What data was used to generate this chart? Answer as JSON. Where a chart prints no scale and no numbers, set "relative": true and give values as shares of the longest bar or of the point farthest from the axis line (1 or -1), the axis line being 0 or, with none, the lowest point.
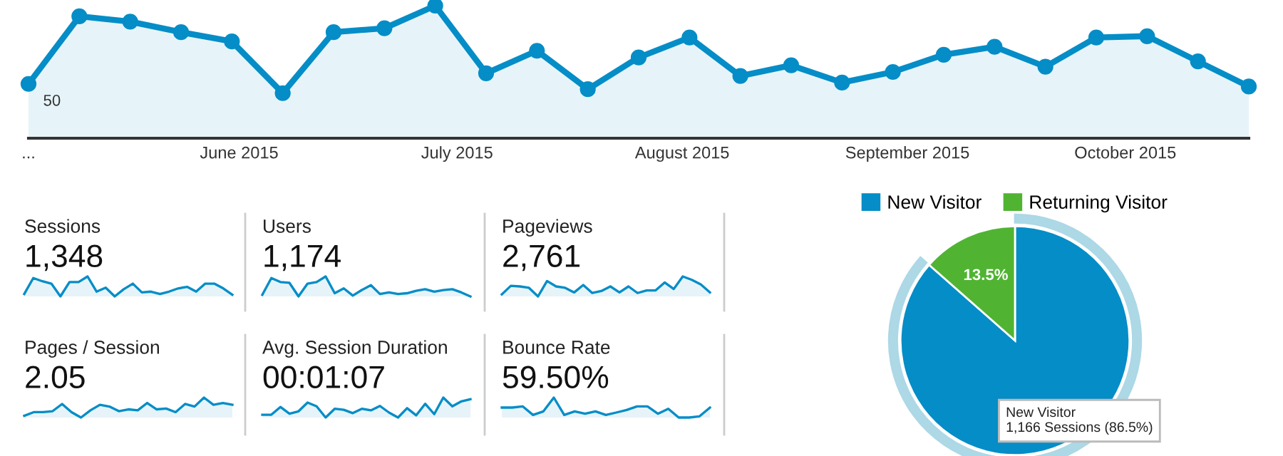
{
  "chart_data": [
    {
      "type": "area",
      "relative": true,
      "color": "#058dc7",
      "marker": "circle",
      "grid": false,
      "x": [
        "2015-05-03",
        "2015-05-10",
        "2015-05-17",
        "2015-05-24",
        "2015-05-31",
        "2015-06-07",
        "2015-06-14",
        "2015-06-21",
        "2015-06-28",
        "2015-07-05",
        "2015-07-12",
        "2015-07-19",
        "2015-07-26",
        "2015-08-02",
        "2015-08-09",
        "2015-08-16",
        "2015-08-23",
        "2015-08-30",
        "2015-09-06",
        "2015-09-13",
        "2015-09-20",
        "2015-09-27",
        "2015-10-04",
        "2015-10-11",
        "2015-10-18"
      ],
      "values": [
        0.41,
        0.92,
        0.88,
        0.8,
        0.73,
        0.34,
        0.8,
        0.83,
        1,
        0.49,
        0.66,
        0.37,
        0.61,
        0.76,
        0.47,
        0.55,
        0.42,
        0.5,
        0.63,
        0.69,
        0.54,
        0.76,
        0.77,
        0.58,
        0.39
      ],
      "xlim": [
        "2015-05-03",
        "2015-10-18"
      ],
      "xticks": [
        {
          "value": "2015-05-03",
          "label": "..."
        },
        {
          "value": "2015-06-01",
          "label": "June 2015"
        },
        {
          "value": "2015-07-01",
          "label": "July 2015"
        },
        {
          "value": "2015-08-01",
          "label": "August 2015"
        },
        {
          "value": "2015-09-01",
          "label": "September 2015"
        },
        {
          "value": "2015-10-01",
          "label": "October 2015"
        }
      ],
      "annotations": [
        "50"
      ]
    },
    {
      "type": "area",
      "relative": true,
      "color": "#058dc7",
      "title": "Sessions",
      "subtitle": "1,348",
      "categories": [
        null,
        null,
        null,
        null,
        null,
        null,
        null,
        null,
        null,
        null,
        null,
        null,
        null,
        null,
        null,
        null,
        null,
        null,
        null,
        null,
        null,
        null,
        null,
        null
      ],
      "values": [
        0.12,
        0.92,
        0.76,
        0.64,
        0,
        0.72,
        0.72,
        1,
        0.24,
        0.44,
        0,
        0.36,
        0.64,
        0.2,
        0.24,
        0.12,
        0.24,
        0.4,
        0.48,
        0.24,
        0.64,
        0.64,
        0.4,
        0.08
      ]
    },
    {
      "type": "area",
      "relative": true,
      "color": "#058dc7",
      "title": "Users",
      "subtitle": "1,174",
      "categories": [
        null,
        null,
        null,
        null,
        null,
        null,
        null,
        null,
        null,
        null,
        null,
        null,
        null,
        null,
        null,
        null,
        null,
        null,
        null,
        null,
        null,
        null,
        null,
        null
      ],
      "values": [
        0.08,
        0.92,
        0.72,
        0.68,
        0,
        0.64,
        0.72,
        1,
        0.16,
        0.4,
        0.04,
        0.32,
        0.56,
        0.12,
        0.2,
        0.12,
        0.16,
        0.28,
        0.36,
        0.24,
        0.32,
        0.36,
        0.2,
        0
      ]
    },
    {
      "type": "area",
      "relative": true,
      "color": "#058dc7",
      "title": "Pageviews",
      "subtitle": "2,761",
      "categories": [
        null,
        null,
        null,
        null,
        null,
        null,
        null,
        null,
        null,
        null,
        null,
        null,
        null,
        null,
        null,
        null,
        null,
        null,
        null,
        null,
        null,
        null,
        null,
        null
      ],
      "values": [
        0.1,
        0.53,
        0.5,
        0.43,
        0,
        0.77,
        0.5,
        0.43,
        0.2,
        0.57,
        0.17,
        0.27,
        0.5,
        0.2,
        0.5,
        0.17,
        0.3,
        0.3,
        0.7,
        0.37,
        1,
        0.83,
        0.6,
        0.2
      ]
    },
    {
      "type": "area",
      "relative": true,
      "color": "#058dc7",
      "title": "Pages / Session",
      "subtitle": "2.05",
      "categories": [
        null,
        null,
        null,
        null,
        null,
        null,
        null,
        null,
        null,
        null,
        null,
        null,
        null,
        null,
        null,
        null,
        null,
        null,
        null,
        null,
        null,
        null,
        null
      ],
      "values": [
        0.09,
        0.27,
        0.27,
        0.32,
        0.68,
        0.27,
        0,
        0.36,
        0.64,
        0.55,
        0.32,
        0.41,
        0.36,
        0.73,
        0.41,
        0.45,
        0.27,
        0.68,
        0.55,
        1,
        0.64,
        0.73,
        0.64
      ]
    },
    {
      "type": "area",
      "relative": true,
      "color": "#058dc7",
      "title": "Avg. Session Duration",
      "subtitle": "00:01:07",
      "categories": [
        null,
        null,
        null,
        null,
        null,
        null,
        null,
        null,
        null,
        null,
        null,
        null,
        null,
        null,
        null,
        null,
        null,
        null,
        null,
        null,
        null,
        null,
        null,
        null
      ],
      "values": [
        0.14,
        0.14,
        0.53,
        0.19,
        0.31,
        0.75,
        0.56,
        0,
        0.44,
        0.39,
        0.22,
        0.44,
        0.36,
        0.58,
        0.25,
        0,
        0.47,
        0.11,
        0.69,
        0.17,
        1,
        0.56,
        0.81,
        0.92
      ]
    },
    {
      "type": "area",
      "relative": true,
      "color": "#058dc7",
      "title": "Bounce Rate",
      "subtitle": "59.50%",
      "categories": [
        null,
        null,
        null,
        null,
        null,
        null,
        null,
        null,
        null,
        null,
        null,
        null,
        null,
        null,
        null,
        null,
        null,
        null,
        null,
        null,
        null
      ],
      "values": [
        0.5,
        0.5,
        0.56,
        0.13,
        0.31,
        1,
        0.13,
        0.31,
        0.19,
        0.31,
        0.13,
        0.25,
        0.38,
        0.56,
        0.56,
        0.19,
        0.44,
        0,
        0,
        0.06,
        0.5
      ]
    },
    {
      "type": "pie",
      "categories": [
        "New Visitor",
        "Returning Visitor"
      ],
      "values": [
        86.5,
        13.5
      ],
      "colors": [
        "#058dc7",
        "#50b432"
      ],
      "legend": "top",
      "value_labels": [
        null,
        "13.5%"
      ],
      "annotations": [
        "New Visitor\n1,166 Sessions (86.5%)"
      ]
    }
  ]
}
